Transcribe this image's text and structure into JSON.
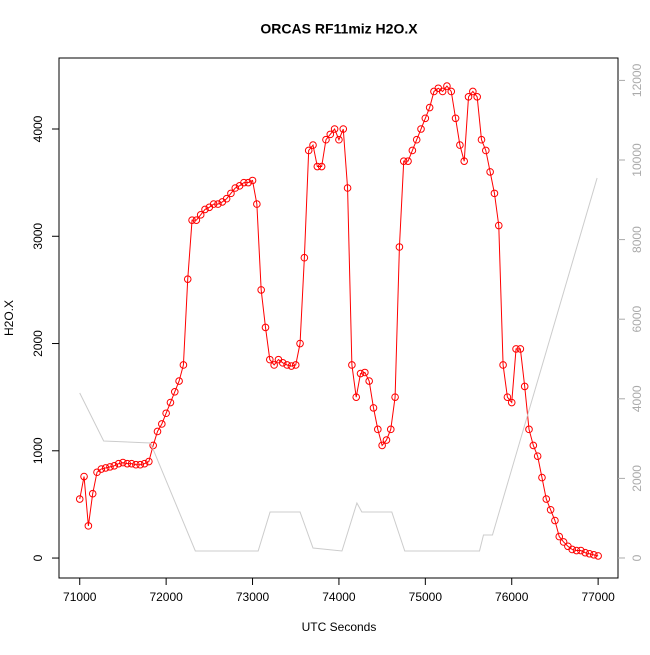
{
  "chart_data": {
    "type": "scatter",
    "title": "ORCAS RF11miz H2O.X",
    "x_label": "UTC Seconds",
    "y_label": "H2O.X",
    "xlim": [
      70760,
      77230
    ],
    "xticks": [
      71000,
      72000,
      73000,
      74000,
      75000,
      76000,
      77000
    ],
    "ylim": [
      -186,
      4662
    ],
    "yticks": [
      0,
      1000,
      2000,
      3000,
      4000
    ],
    "y2lim": [
      -503,
      12563
    ],
    "y2ticks": [
      0,
      2000,
      4000,
      6000,
      8000,
      10000,
      12000
    ],
    "series": [
      {
        "color": "#ff0000",
        "markers": true,
        "x": [
          71000,
          71050,
          71100,
          71150,
          71200,
          71250,
          71300,
          71350,
          71400,
          71450,
          71500,
          71550,
          71600,
          71650,
          71700,
          71750,
          71800,
          71850,
          71900,
          71950,
          72000,
          72050,
          72100,
          72150,
          72200,
          72250,
          72300,
          72350,
          72400,
          72450,
          72500,
          72550,
          72600,
          72650,
          72700,
          72750,
          72800,
          72850,
          72900,
          72950,
          73000,
          73050,
          73100,
          73150,
          73200,
          73250,
          73300,
          73350,
          73400,
          73450,
          73500,
          73550,
          73600,
          73650,
          73700,
          73750,
          73800,
          73850,
          73900,
          73950,
          74000,
          74050,
          74100,
          74150,
          74200,
          74250,
          74300,
          74350,
          74400,
          74450,
          74500,
          74550,
          74600,
          74650,
          74700,
          74750,
          74800,
          74850,
          74900,
          74950,
          75000,
          75050,
          75100,
          75150,
          75200,
          75250,
          75300,
          75350,
          75400,
          75450,
          75500,
          75550,
          75600,
          75650,
          75700,
          75750,
          75800,
          75850,
          75900,
          75950,
          76000,
          76050,
          76100,
          76150,
          76200,
          76250,
          76300,
          76350,
          76400,
          76450,
          76500,
          76550,
          76600,
          76650,
          76700,
          76750,
          76800,
          76850,
          76900,
          76950,
          77000
        ],
        "values": [
          550,
          760,
          300,
          600,
          800,
          830,
          840,
          850,
          860,
          880,
          890,
          880,
          880,
          870,
          870,
          880,
          900,
          1050,
          1180,
          1250,
          1350,
          1450,
          1550,
          1650,
          1800,
          2600,
          3150,
          3150,
          3200,
          3250,
          3270,
          3300,
          3300,
          3320,
          3350,
          3400,
          3450,
          3470,
          3500,
          3500,
          3520,
          3300,
          2500,
          2150,
          1850,
          1800,
          1850,
          1820,
          1800,
          1790,
          1800,
          2000,
          2800,
          3800,
          3850,
          3650,
          3650,
          3900,
          3950,
          4000,
          3900,
          4000,
          3450,
          1800,
          1500,
          1720,
          1730,
          1650,
          1400,
          1200,
          1050,
          1100,
          1200,
          1500,
          2900,
          3700,
          3700,
          3800,
          3900,
          4000,
          4100,
          4200,
          4350,
          4380,
          4350,
          4400,
          4350,
          4100,
          3850,
          3700,
          4300,
          4350,
          4300,
          3900,
          3800,
          3600,
          3400,
          3100,
          1800,
          1500,
          1450,
          1950,
          1950,
          1600,
          1200,
          1050,
          950,
          750,
          550,
          450,
          350,
          200,
          150,
          110,
          80,
          70,
          70,
          50,
          40,
          30,
          20
        ]
      },
      {
        "color": "#cccccc",
        "axis": "y2",
        "markers": false,
        "x": [
          71000,
          71277,
          71819,
          72338,
          73065,
          73203,
          73550,
          73700,
          74035,
          74208,
          74265,
          74612,
          74762,
          75627,
          75673,
          75777,
          76988
        ],
        "values": [
          4146,
          2940,
          2890,
          176,
          176,
          1156,
          1156,
          251,
          176,
          1382,
          1156,
          1156,
          176,
          176,
          578,
          578,
          9548
        ]
      }
    ]
  }
}
